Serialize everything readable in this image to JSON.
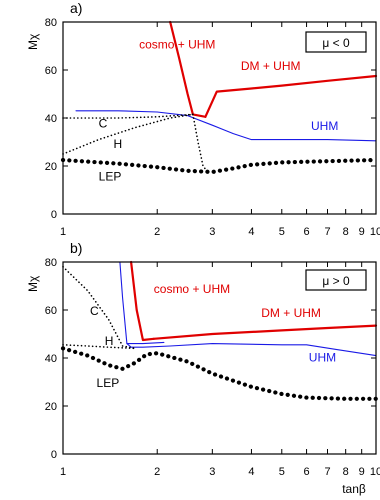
{
  "chart_data": [
    {
      "type": "line",
      "panel_label": "a)",
      "ylabel": "Mχ",
      "xscale": "log",
      "xlim": [
        1,
        10
      ],
      "ylim": [
        0,
        80
      ],
      "x_ticks": [
        1,
        2,
        3,
        4,
        5,
        6,
        7,
        8,
        9,
        10
      ],
      "x_tick_labels": [
        "1",
        "2",
        "3",
        "4",
        "5",
        "6",
        "7",
        "8",
        "9",
        "10"
      ],
      "y_ticks": [
        0,
        20,
        40,
        60,
        80
      ],
      "y_tick_labels": [
        "0",
        "20",
        "40",
        "60",
        "80"
      ],
      "legend_box": "μ < 0",
      "legend_placement": "top-right",
      "colors": {
        "red": "#e00000",
        "blue": "#1a1ae6",
        "black": "#000000"
      },
      "series": [
        {
          "label": "cosmo + UHM",
          "color": "#e00000",
          "style": "solid-thick",
          "points": [
            [
              2.2,
              80
            ],
            [
              2.35,
              65
            ],
            [
              2.5,
              50
            ],
            [
              2.6,
              41.5
            ],
            [
              2.85,
              40.5
            ]
          ]
        },
        {
          "label": "DM + UHM",
          "color": "#e00000",
          "style": "solid-thick",
          "points": [
            [
              2.85,
              40.5
            ],
            [
              3.1,
              51
            ],
            [
              4,
              52.3
            ],
            [
              5,
              53.5
            ],
            [
              7,
              55.5
            ],
            [
              10,
              57.5
            ]
          ]
        },
        {
          "label": "UHM",
          "color": "#1a1ae6",
          "style": "solid",
          "points": [
            [
              1.1,
              43
            ],
            [
              1.5,
              43
            ],
            [
              2,
              42.5
            ],
            [
              2.5,
              41
            ],
            [
              3,
              37
            ],
            [
              3.5,
              33.5
            ],
            [
              4,
              31
            ],
            [
              5,
              31
            ],
            [
              7,
              31
            ],
            [
              10,
              30.5
            ]
          ]
        },
        {
          "label": "LEP",
          "color": "#000000",
          "style": "dotted-thick",
          "points": [
            [
              1,
              22.5
            ],
            [
              1.5,
              21
            ],
            [
              2,
              19.5
            ],
            [
              2.5,
              18
            ],
            [
              3,
              17.5
            ],
            [
              3.5,
              19
            ],
            [
              4,
              20.5
            ],
            [
              5,
              21.5
            ],
            [
              7,
              22
            ],
            [
              10,
              22.5
            ]
          ]
        },
        {
          "label": "C",
          "color": "#000000",
          "style": "dotted",
          "points": [
            [
              1,
              40
            ],
            [
              1.5,
              40
            ],
            [
              2,
              40.5
            ],
            [
              2.6,
              41.5
            ]
          ]
        },
        {
          "label": "H",
          "color": "#000000",
          "style": "dotted",
          "points": [
            [
              1,
              25
            ],
            [
              1.3,
              31
            ],
            [
              1.7,
              36
            ],
            [
              2.2,
              40
            ],
            [
              2.6,
              41.5
            ]
          ]
        },
        {
          "label": "",
          "color": "#000000",
          "style": "dotted",
          "points": [
            [
              2.6,
              41.5
            ],
            [
              2.7,
              30
            ],
            [
              2.8,
              20
            ],
            [
              2.9,
              17.5
            ]
          ]
        }
      ],
      "annotations": [
        {
          "text": "cosmo + UHM",
          "x": 1.75,
          "y": 69,
          "color": "#e00000"
        },
        {
          "text": "DM + UHM",
          "x": 3.7,
          "y": 60,
          "color": "#e00000"
        },
        {
          "text": "UHM",
          "x": 6.2,
          "y": 35,
          "color": "#1a1ae6"
        },
        {
          "text": "LEP",
          "x": 1.3,
          "y": 14,
          "color": "#000000"
        },
        {
          "text": "C",
          "x": 1.3,
          "y": 36,
          "color": "#000000"
        },
        {
          "text": "H",
          "x": 1.45,
          "y": 27.5,
          "color": "#000000"
        }
      ]
    },
    {
      "type": "line",
      "panel_label": "b)",
      "ylabel": "Mχ",
      "xlabel": "tanβ",
      "xscale": "log",
      "xlim": [
        1,
        10
      ],
      "ylim": [
        0,
        80
      ],
      "x_ticks": [
        1,
        2,
        3,
        4,
        5,
        6,
        7,
        8,
        9,
        10
      ],
      "x_tick_labels": [
        "1",
        "2",
        "3",
        "4",
        "5",
        "6",
        "7",
        "8",
        "9",
        "10"
      ],
      "y_ticks": [
        0,
        20,
        40,
        60,
        80
      ],
      "y_tick_labels": [
        "0",
        "20",
        "40",
        "60",
        "80"
      ],
      "legend_box": "μ > 0",
      "legend_placement": "top-right",
      "colors": {
        "red": "#e00000",
        "blue": "#1a1ae6",
        "black": "#000000"
      },
      "series": [
        {
          "label": "cosmo + UHM",
          "color": "#e00000",
          "style": "solid-thick",
          "points": [
            [
              1.65,
              80
            ],
            [
              1.72,
              60
            ],
            [
              1.8,
              47.5
            ],
            [
              1.95,
              48
            ]
          ]
        },
        {
          "label": "DM + UHM",
          "color": "#e00000",
          "style": "solid-thick",
          "points": [
            [
              1.95,
              48
            ],
            [
              3,
              50
            ],
            [
              5,
              51.5
            ],
            [
              7,
              52.5
            ],
            [
              10,
              53.5
            ]
          ]
        },
        {
          "label": "UHM",
          "color": "#1a1ae6",
          "style": "solid",
          "points": [
            [
              1.52,
              80
            ],
            [
              1.55,
              65
            ],
            [
              1.6,
              46
            ],
            [
              1.65,
              44.5
            ],
            [
              1.8,
              44.5
            ],
            [
              2.2,
              45
            ],
            [
              3,
              46
            ],
            [
              5,
              45.5
            ],
            [
              6,
              45.5
            ],
            [
              7.5,
              43.5
            ],
            [
              10,
              41
            ]
          ]
        },
        {
          "label": "",
          "color": "#1a1ae6",
          "style": "solid",
          "points": [
            [
              1.6,
              46
            ],
            [
              1.8,
              46
            ],
            [
              2.1,
              46.5
            ]
          ]
        },
        {
          "label": "LEP",
          "color": "#000000",
          "style": "dotted-thick",
          "points": [
            [
              1,
              44
            ],
            [
              1.2,
              41
            ],
            [
              1.4,
              37
            ],
            [
              1.55,
              35.5
            ],
            [
              1.7,
              38
            ],
            [
              1.85,
              41.5
            ],
            [
              2,
              42
            ],
            [
              2.5,
              38.5
            ],
            [
              3,
              33.5
            ],
            [
              4,
              28
            ],
            [
              5,
              25
            ],
            [
              6,
              23.5
            ],
            [
              8,
              23
            ],
            [
              10,
              23
            ]
          ]
        },
        {
          "label": "C",
          "color": "#000000",
          "style": "dotted",
          "points": [
            [
              1,
              78
            ],
            [
              1.2,
              68
            ],
            [
              1.4,
              56
            ],
            [
              1.55,
              45
            ],
            [
              1.7,
              44
            ]
          ]
        },
        {
          "label": "H",
          "color": "#000000",
          "style": "dotted",
          "points": [
            [
              1,
              45.5
            ],
            [
              1.2,
              45
            ],
            [
              1.4,
              44.5
            ],
            [
              1.7,
              44
            ]
          ]
        }
      ],
      "annotations": [
        {
          "text": "cosmo + UHM",
          "x": 1.95,
          "y": 67,
          "color": "#e00000"
        },
        {
          "text": "DM + UHM",
          "x": 4.3,
          "y": 57,
          "color": "#e00000"
        },
        {
          "text": "UHM",
          "x": 6.1,
          "y": 38.5,
          "color": "#1a1ae6"
        },
        {
          "text": "LEP",
          "x": 1.28,
          "y": 28,
          "color": "#000000"
        },
        {
          "text": "C",
          "x": 1.22,
          "y": 58,
          "color": "#000000"
        },
        {
          "text": "H",
          "x": 1.36,
          "y": 45.5,
          "color": "#000000"
        }
      ]
    }
  ]
}
